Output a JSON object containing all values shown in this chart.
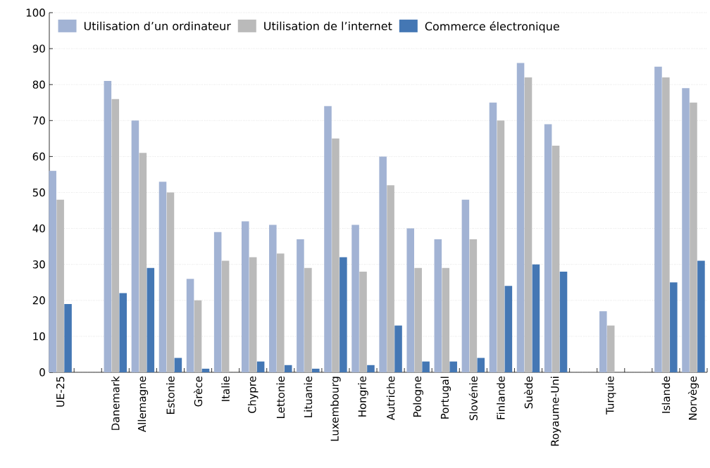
{
  "chart_data": {
    "type": "bar",
    "categories": [
      "UE-25",
      null,
      "Danemark",
      "Allemagne",
      "Estonie",
      "Grèce",
      "Italie",
      "Chypre",
      "Lettonie",
      "Lituanie",
      "Luxembourg",
      "Hongrie",
      "Autriche",
      "Pologne",
      "Portugal",
      "Slovénie",
      "Finlande",
      "Suède",
      "Royaume-Uni",
      null,
      "Turquie",
      null,
      "Islande",
      "Norvège"
    ],
    "series": [
      {
        "name": "Utilisation d’un ordinateur",
        "color": "#a2b3d4",
        "values": [
          56,
          null,
          81,
          70,
          53,
          26,
          39,
          42,
          41,
          37,
          74,
          41,
          60,
          40,
          37,
          48,
          75,
          86,
          69,
          null,
          17,
          null,
          85,
          79
        ]
      },
      {
        "name": "Utilisation de l’internet",
        "color": "#bababa",
        "values": [
          48,
          null,
          76,
          61,
          50,
          20,
          31,
          32,
          33,
          29,
          65,
          28,
          52,
          29,
          29,
          37,
          70,
          82,
          63,
          null,
          13,
          null,
          82,
          75
        ]
      },
      {
        "name": "Commerce électronique",
        "color": "#4477b4",
        "values": [
          19,
          null,
          22,
          29,
          4,
          1,
          null,
          3,
          2,
          1,
          32,
          2,
          13,
          3,
          3,
          4,
          24,
          30,
          28,
          null,
          null,
          null,
          25,
          31
        ]
      }
    ],
    "ylim": [
      0,
      100
    ],
    "yticks": [
      0,
      10,
      20,
      30,
      40,
      50,
      60,
      70,
      80,
      90,
      100
    ],
    "grid": "y",
    "legend": "top left"
  }
}
